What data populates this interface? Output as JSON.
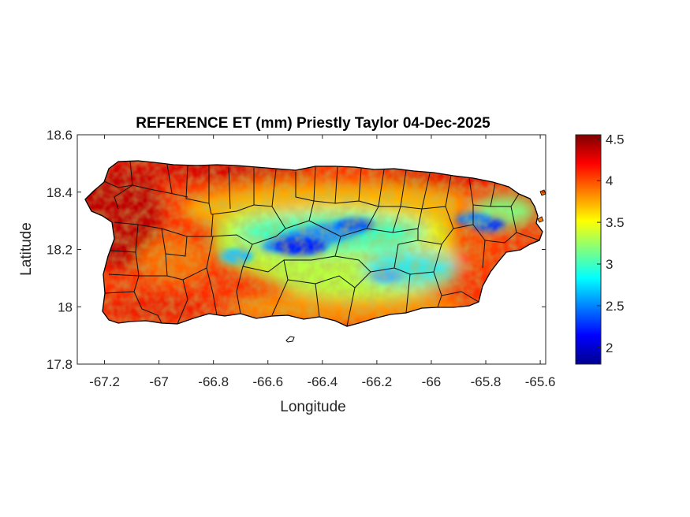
{
  "chart_data": {
    "type": "heatmap",
    "title": "REFERENCE ET (mm) Priestly Taylor 04-Dec-2025",
    "xlabel": "Longitude",
    "ylabel": "Latitude",
    "xlim": [
      -67.3,
      -65.58
    ],
    "ylim": [
      17.8,
      18.6
    ],
    "xticks": [
      -67.2,
      -67,
      -66.8,
      -66.6,
      -66.4,
      -66.2,
      -66,
      -65.8,
      -65.6
    ],
    "xtick_labels": [
      "-67.2",
      "-67",
      "-66.8",
      "-66.6",
      "-66.4",
      "-66.2",
      "-66",
      "-65.8",
      "-65.6"
    ],
    "yticks": [
      18.6,
      18.4,
      18.2,
      18,
      17.8
    ],
    "ytick_labels": [
      "18.6",
      "18.4",
      "18.2",
      "18",
      "17.8"
    ],
    "colorbar": {
      "colormap": "jet",
      "clim": [
        1.8,
        4.55
      ],
      "ticks": [
        4.5,
        4,
        3.5,
        3,
        2.5,
        2
      ],
      "tick_labels": [
        "4.5",
        "4",
        "3.5",
        "3",
        "2.5",
        "2"
      ]
    },
    "grid": false,
    "region": "Puerto Rico",
    "spatial_pattern": [
      {
        "description": "coast and west/south lowlands",
        "value_approx": 4.4
      },
      {
        "description": "northern coastal belt",
        "value_approx": 4.2
      },
      {
        "description": "central interior",
        "value_approx": 3.4
      },
      {
        "description": "Cordillera Central core",
        "value_approx": 2.2
      },
      {
        "description": "eastern El Yunque area",
        "value_approx": 2.3
      }
    ]
  }
}
